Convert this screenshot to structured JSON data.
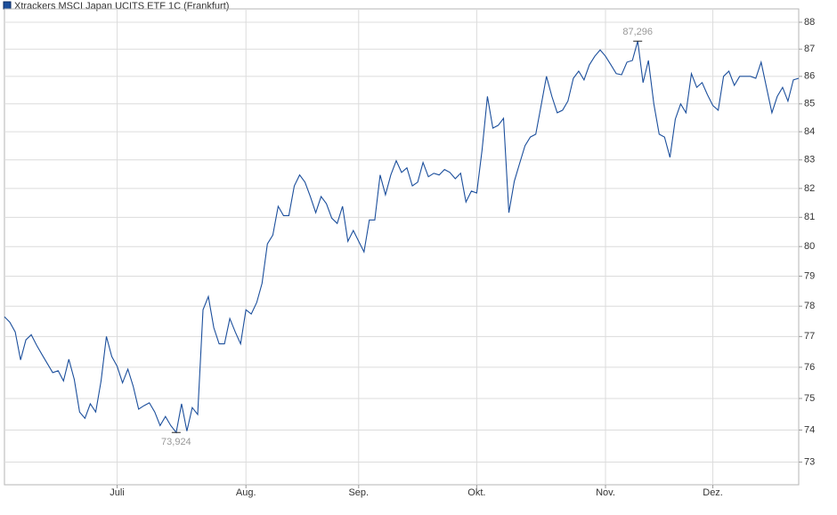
{
  "chart_data": {
    "type": "line",
    "title": "Xtrackers MSCI Japan UCITS ETF 1C (Frankfurt)",
    "color": "#1c4f9c",
    "log_scale": true,
    "grid": true,
    "categories": [
      null,
      null,
      null,
      null,
      null,
      null,
      null,
      null,
      null,
      null,
      null,
      null,
      null,
      null,
      null,
      null,
      null,
      null,
      null,
      null,
      null,
      "Juli",
      null,
      null,
      null,
      null,
      null,
      null,
      null,
      null,
      null,
      null,
      null,
      null,
      null,
      null,
      null,
      null,
      null,
      null,
      null,
      null,
      null,
      null,
      null,
      "Aug.",
      null,
      null,
      null,
      null,
      null,
      null,
      null,
      null,
      null,
      null,
      null,
      null,
      null,
      null,
      null,
      null,
      null,
      null,
      null,
      null,
      "Sep.",
      null,
      null,
      null,
      null,
      null,
      null,
      null,
      null,
      null,
      null,
      null,
      null,
      null,
      null,
      null,
      null,
      null,
      null,
      null,
      null,
      null,
      "Okt.",
      null,
      null,
      null,
      null,
      null,
      null,
      null,
      null,
      null,
      null,
      null,
      null,
      null,
      null,
      null,
      null,
      null,
      null,
      null,
      null,
      null,
      null,
      null,
      "Nov.",
      null,
      null,
      null,
      null,
      null,
      null,
      null,
      null,
      null,
      null,
      null,
      null,
      null,
      null,
      null,
      null,
      null,
      null,
      null,
      "Dez.",
      null,
      null,
      null,
      null,
      null,
      null,
      null,
      null,
      null,
      null,
      null,
      null,
      null,
      null,
      null,
      null
    ],
    "values": [
      77.65,
      77.47,
      77.15,
      76.24,
      76.89,
      77.06,
      76.71,
      76.41,
      76.12,
      75.83,
      75.89,
      75.56,
      76.26,
      75.61,
      74.57,
      74.37,
      74.83,
      74.57,
      75.56,
      77.0,
      76.35,
      76.03,
      75.5,
      75.94,
      75.39,
      74.66,
      74.77,
      74.86,
      74.57,
      74.14,
      74.43,
      74.14,
      73.924,
      74.83,
      73.97,
      74.71,
      74.49,
      77.88,
      78.32,
      77.29,
      76.76,
      76.76,
      77.59,
      77.15,
      76.76,
      77.88,
      77.74,
      78.12,
      78.76,
      80.09,
      80.39,
      81.38,
      81.06,
      81.06,
      82.09,
      82.47,
      82.22,
      81.72,
      81.16,
      81.72,
      81.47,
      80.97,
      80.79,
      81.38,
      80.18,
      80.55,
      80.18,
      79.82,
      80.91,
      80.91,
      82.47,
      81.78,
      82.47,
      82.97,
      82.56,
      82.72,
      82.09,
      82.22,
      82.91,
      82.41,
      82.53,
      82.47,
      82.66,
      82.56,
      82.34,
      82.53,
      81.53,
      81.91,
      81.84,
      83.35,
      85.27,
      84.13,
      84.23,
      84.48,
      81.16,
      82.25,
      82.88,
      83.5,
      83.81,
      83.91,
      84.94,
      86.0,
      85.27,
      84.68,
      84.77,
      85.1,
      85.93,
      86.19,
      85.87,
      86.42,
      86.74,
      86.97,
      86.74,
      86.42,
      86.1,
      86.06,
      86.52,
      86.58,
      87.296,
      85.77,
      86.58,
      85.0,
      83.91,
      83.81,
      83.09,
      84.45,
      85.0,
      84.68,
      86.1,
      85.6,
      85.77,
      85.33,
      84.94,
      84.77,
      86.0,
      86.19,
      85.67,
      86.0,
      86.0,
      86.0,
      85.93,
      86.52,
      85.6,
      84.68,
      85.27,
      85.6,
      85.1,
      85.87,
      85.93
    ],
    "ylim": [
      72.3,
      88.5
    ],
    "yticks": [
      73,
      74,
      75,
      76,
      77,
      78,
      79,
      80,
      81,
      82,
      83,
      84,
      85,
      86,
      87,
      88
    ],
    "annotations": [
      {
        "label": "87,296",
        "value": 87.296
      },
      {
        "label": "73,924",
        "value": 73.924
      }
    ]
  }
}
